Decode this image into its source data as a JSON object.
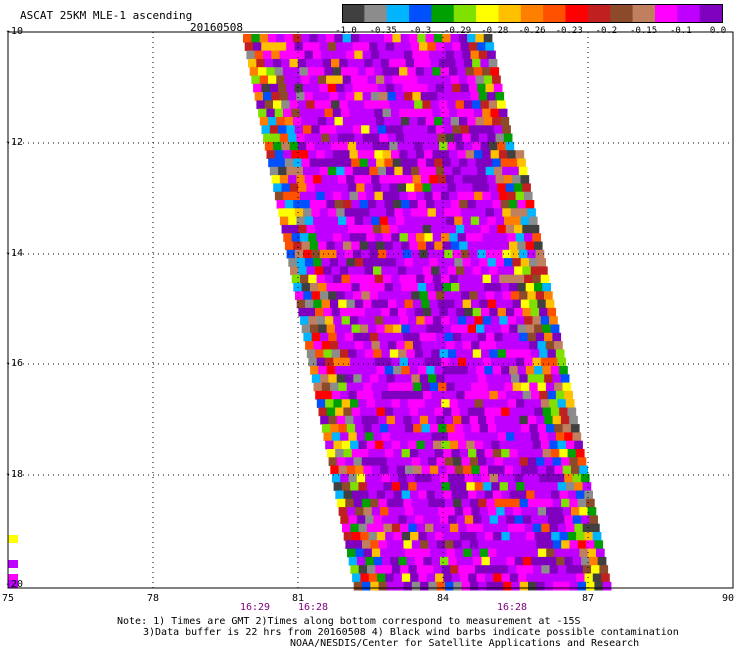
{
  "header": {
    "title": "ASCAT 25KM MLE-1 ascending",
    "date": "20160508"
  },
  "colorbar": {
    "colors": [
      "#404040",
      "#8c8c8c",
      "#00b4ff",
      "#0050ff",
      "#00a000",
      "#80e000",
      "#ffff00",
      "#ffc000",
      "#ff8000",
      "#ff5000",
      "#ff0000",
      "#c02020",
      "#8c4a2a",
      "#c08060",
      "#ff00ff",
      "#c000ff",
      "#8000c0"
    ],
    "labels": [
      "-1.0",
      "-0.35",
      "-0.3",
      "-0.29",
      "-0.28",
      "-0.26",
      "-0.23",
      "-0.2",
      "-0.15",
      "-0.1",
      "0.0"
    ]
  },
  "axes": {
    "x_ticks": [
      "75",
      "78",
      "81",
      "84",
      "87",
      "90"
    ],
    "y_ticks": [
      "-10",
      "-12",
      "-14",
      "-16",
      "-18",
      "-20"
    ],
    "time_labels": [
      "16:29",
      "16:28",
      "16:28"
    ]
  },
  "notes": {
    "line1": "Note: 1) Times are GMT 2)Times along bottom correspond to measurement at -15S",
    "line2": "3)Data buffer is 22 hrs from 20160508 4) Black wind barbs indicate possible contamination",
    "line3": "NOAA/NESDIS/Center for Satellite Applications and Research"
  }
}
